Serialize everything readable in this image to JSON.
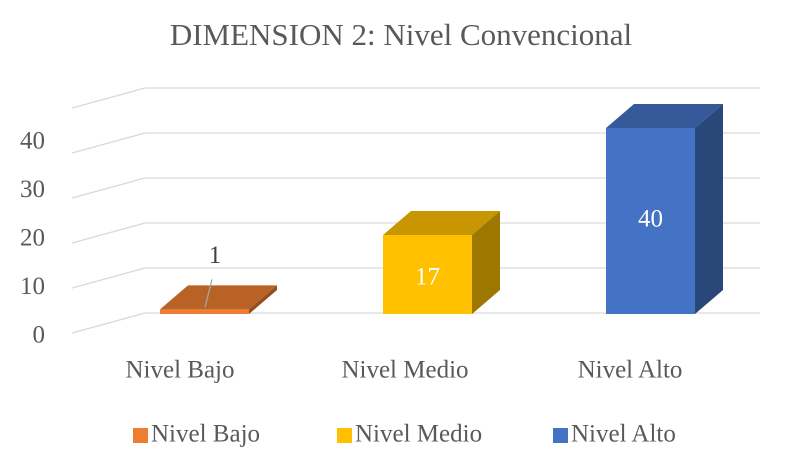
{
  "chart_data": {
    "type": "bar3d",
    "title": "DIMENSION 2: Nivel Convencional",
    "categories": [
      "Nivel Bajo",
      "Nivel Medio",
      "Nivel Alto"
    ],
    "values": [
      1,
      17,
      40
    ],
    "colors": [
      "#ED7D31",
      "#FFC000",
      "#4472C4"
    ],
    "ylim": [
      0,
      50
    ],
    "yticks": [
      0,
      10,
      20,
      30,
      40
    ],
    "grid": true,
    "legend": "bottom"
  }
}
